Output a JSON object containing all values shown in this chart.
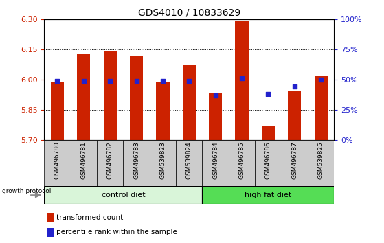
{
  "title": "GDS4010 / 10833629",
  "samples": [
    "GSM496780",
    "GSM496781",
    "GSM496782",
    "GSM496783",
    "GSM539823",
    "GSM539824",
    "GSM496784",
    "GSM496785",
    "GSM496786",
    "GSM496787",
    "GSM539825"
  ],
  "transformed_count": [
    5.99,
    6.13,
    6.14,
    6.12,
    5.99,
    6.07,
    5.93,
    6.29,
    5.77,
    5.94,
    6.02
  ],
  "percentile_rank": [
    49,
    49,
    49,
    49,
    49,
    49,
    37,
    51,
    38,
    44,
    50
  ],
  "ylim_left": [
    5.7,
    6.3
  ],
  "yticks_left": [
    5.7,
    5.85,
    6.0,
    6.15,
    6.3
  ],
  "yticks_right": [
    0,
    25,
    50,
    75,
    100
  ],
  "grid_values": [
    5.85,
    6.0,
    6.15
  ],
  "bar_color": "#cc2200",
  "dot_color": "#2222cc",
  "n_control": 6,
  "control_diet_label": "control diet",
  "high_fat_label": "high fat diet",
  "growth_protocol_label": "growth protocol",
  "legend_bar_label": "transformed count",
  "legend_dot_label": "percentile rank within the sample",
  "control_diet_color": "#d9f5d9",
  "high_fat_color": "#55dd55",
  "label_color_left": "#cc2200",
  "label_color_right": "#2222cc",
  "base_value": 5.7,
  "bar_width": 0.5,
  "sample_label_fontsize": 6.5,
  "title_fontsize": 10
}
